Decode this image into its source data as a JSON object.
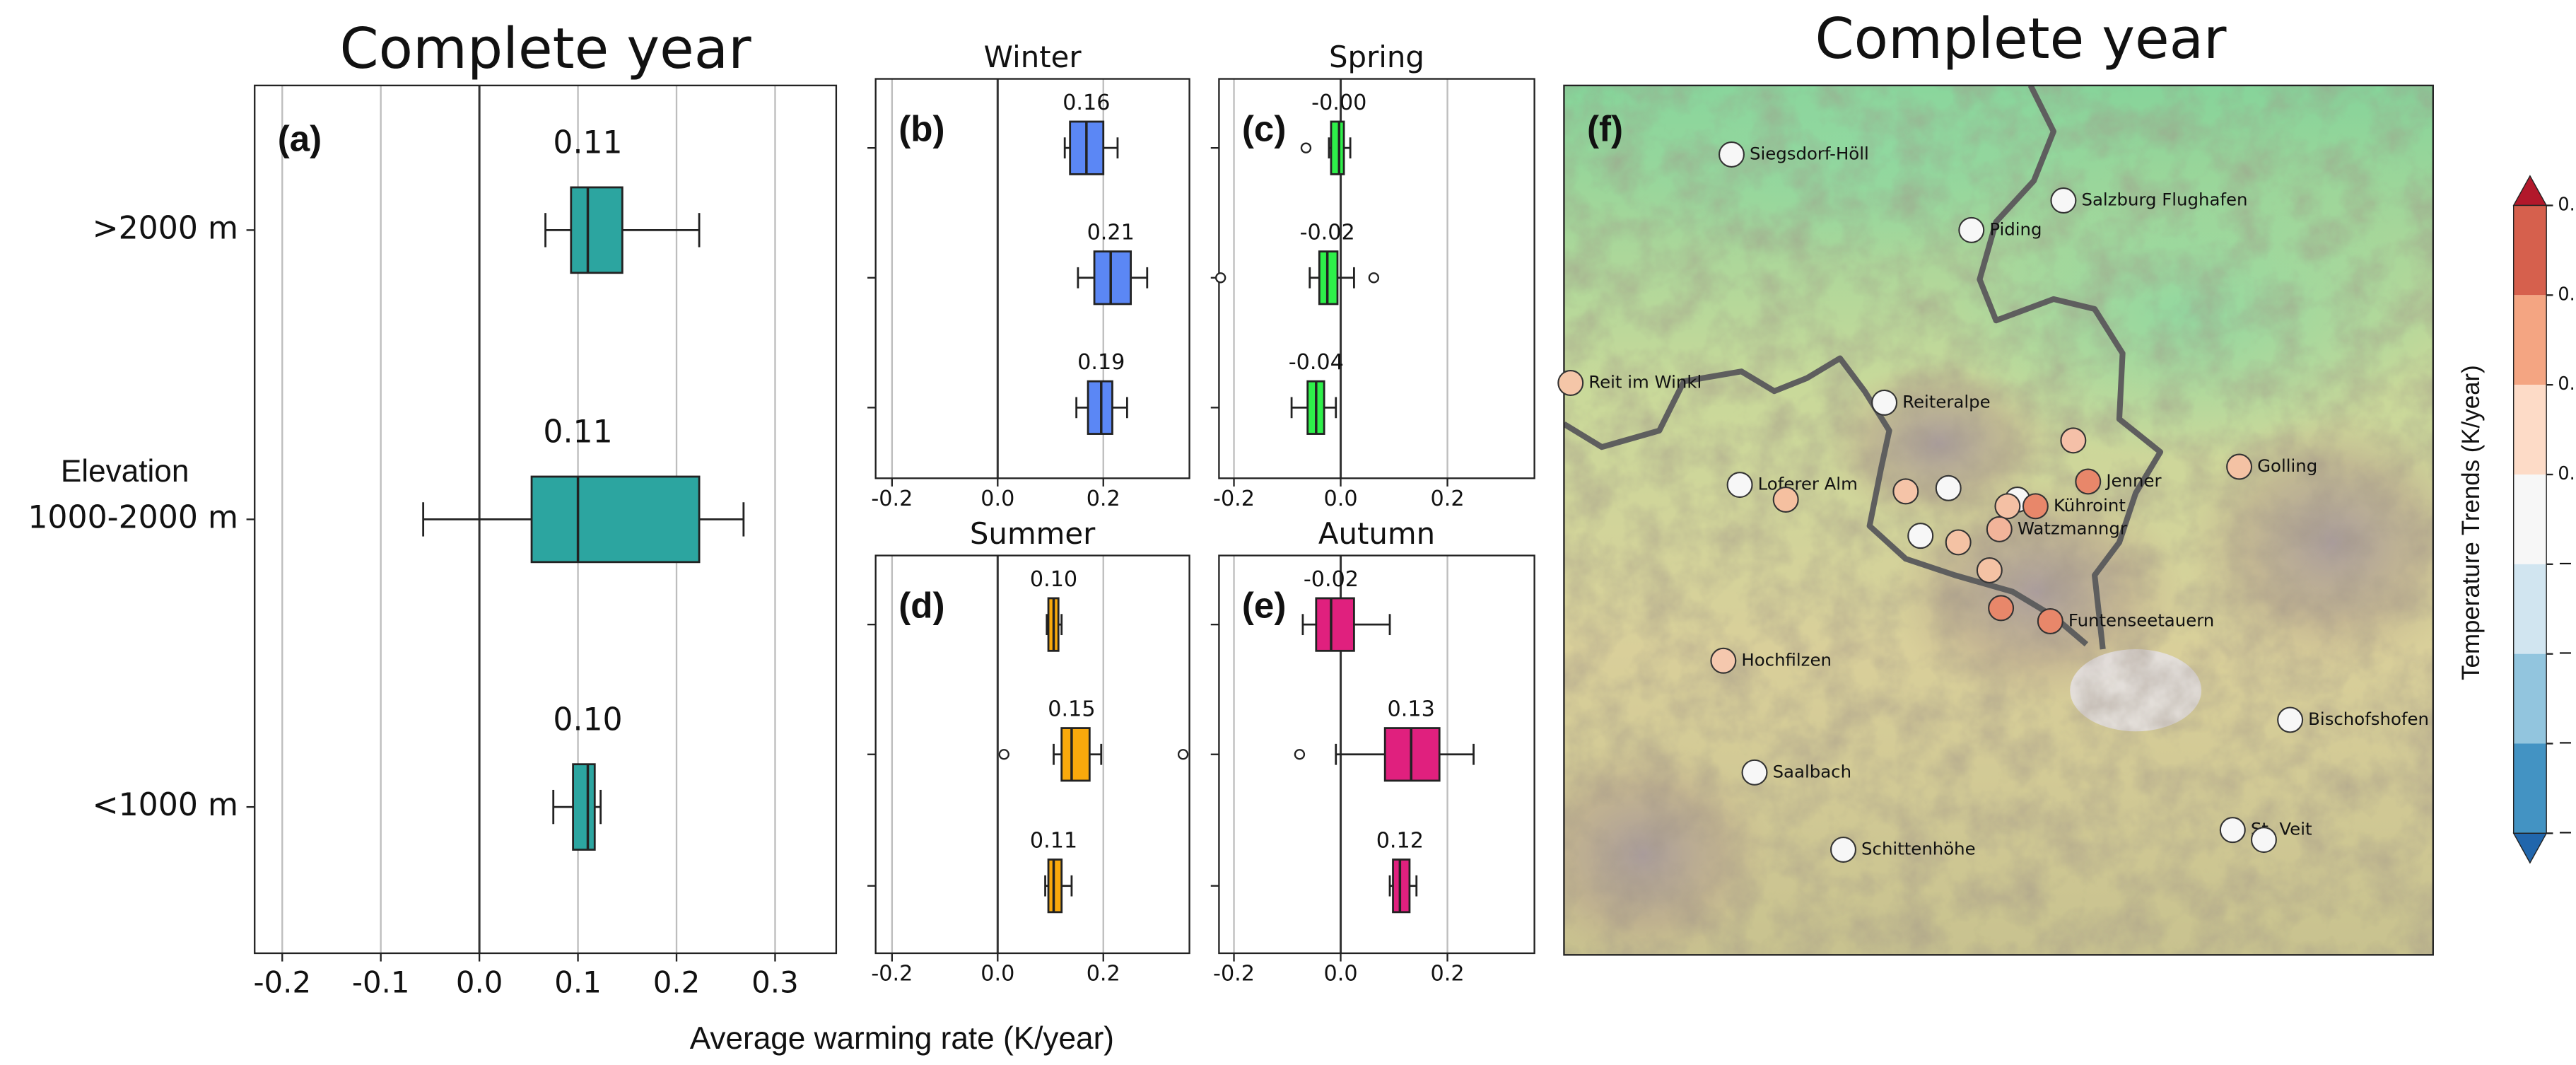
{
  "chart_data": [
    {
      "type": "box",
      "panel": "(a)",
      "title": "Complete year",
      "ylabel": "Elevation",
      "xlabel": "Average warming rate (K/year)",
      "categories": [
        ">2000 m",
        "1000-2000 m",
        "<1000 m"
      ],
      "color": "#2ca5a0",
      "xlim": [
        -0.228,
        0.362
      ],
      "xticks": [
        -0.2,
        -0.1,
        {
          "value": 0,
          "label": "0.0"
        },
        0.1,
        0.2,
        0.3
      ],
      "boxes": [
        {
          "whislo": 0.067,
          "q1": 0.093,
          "med": 0.11,
          "q3": 0.145,
          "whishi": 0.223,
          "fliers": [],
          "label": "0.11"
        },
        {
          "whislo": -0.057,
          "q1": 0.053,
          "med": 0.1,
          "q3": 0.223,
          "whishi": 0.268,
          "fliers": [],
          "label": "0.11"
        },
        {
          "whislo": 0.075,
          "q1": 0.095,
          "med": 0.11,
          "q3": 0.117,
          "whishi": 0.123,
          "fliers": [],
          "label": "0.10"
        }
      ]
    },
    {
      "type": "box",
      "panel": "(b)",
      "title": "Winter",
      "color": "#5b87f5",
      "xlim": [
        -0.231,
        0.363
      ],
      "xticks": [
        -0.2,
        {
          "value": 0,
          "label": "0.0"
        },
        0.2
      ],
      "boxes": [
        {
          "whislo": 0.127,
          "q1": 0.137,
          "med": 0.168,
          "q3": 0.2,
          "whishi": 0.227,
          "fliers": [],
          "label": "0.16"
        },
        {
          "whislo": 0.152,
          "q1": 0.183,
          "med": 0.214,
          "q3": 0.252,
          "whishi": 0.283,
          "fliers": [],
          "label": "0.21"
        },
        {
          "whislo": 0.149,
          "q1": 0.171,
          "med": 0.196,
          "q3": 0.217,
          "whishi": 0.245,
          "fliers": [],
          "label": "0.19"
        }
      ]
    },
    {
      "type": "box",
      "panel": "(c)",
      "title": "Spring",
      "color": "#2ef04a",
      "xlim": [
        -0.228,
        0.363
      ],
      "xticks": [
        -0.2,
        {
          "value": 0,
          "label": "0.0"
        },
        0.2
      ],
      "boxes": [
        {
          "whislo": -0.022,
          "q1": -0.018,
          "med": -0.003,
          "q3": 0.006,
          "whishi": 0.018,
          "fliers": [
            -0.065
          ],
          "label": "-0.00"
        },
        {
          "whislo": -0.058,
          "q1": -0.04,
          "med": -0.025,
          "q3": -0.006,
          "whishi": 0.025,
          "fliers": [
            -0.225,
            0.062
          ],
          "label": "-0.02"
        },
        {
          "whislo": -0.092,
          "q1": -0.062,
          "med": -0.046,
          "q3": -0.031,
          "whishi": -0.009,
          "fliers": [],
          "label": "-0.04"
        }
      ]
    },
    {
      "type": "box",
      "panel": "(d)",
      "title": "Summer",
      "color": "#f9a90c",
      "xlim": [
        -0.231,
        0.363
      ],
      "xticks": [
        -0.2,
        {
          "value": 0,
          "label": "0.0"
        },
        0.2
      ],
      "boxes": [
        {
          "whislo": 0.093,
          "q1": 0.096,
          "med": 0.106,
          "q3": 0.115,
          "whishi": 0.121,
          "fliers": [],
          "label": "0.10"
        },
        {
          "whislo": 0.106,
          "q1": 0.121,
          "med": 0.14,
          "q3": 0.174,
          "whishi": 0.196,
          "fliers": [
            0.012,
            0.351
          ],
          "label": "0.15"
        },
        {
          "whislo": 0.09,
          "q1": 0.096,
          "med": 0.106,
          "q3": 0.121,
          "whishi": 0.14,
          "fliers": [],
          "label": "0.11"
        }
      ]
    },
    {
      "type": "box",
      "panel": "(e)",
      "title": "Autumn",
      "color": "#e0207e",
      "xlim": [
        -0.228,
        0.363
      ],
      "xticks": [
        -0.2,
        {
          "value": 0,
          "label": "0.0"
        },
        0.2
      ],
      "boxes": [
        {
          "whislo": -0.071,
          "q1": -0.046,
          "med": -0.018,
          "q3": 0.025,
          "whishi": 0.092,
          "fliers": [],
          "label": "-0.02"
        },
        {
          "whislo": -0.009,
          "q1": 0.083,
          "med": 0.132,
          "q3": 0.185,
          "whishi": 0.249,
          "fliers": [
            -0.077
          ],
          "label": "0.13"
        },
        {
          "whislo": 0.092,
          "q1": 0.098,
          "med": 0.111,
          "q3": 0.129,
          "whishi": 0.142,
          "fliers": [],
          "label": "0.12"
        }
      ]
    },
    {
      "type": "map",
      "panel": "(f)",
      "title": "Complete year",
      "stations": [
        {
          "name": "Siegsdorf-Höll",
          "color": "#f7f7f7"
        },
        {
          "name": "Salzburg Flughafen",
          "color": "#f7f7f7"
        },
        {
          "name": "Piding",
          "color": "#f7f7f7"
        },
        {
          "name": "Reit im Winkl",
          "color": "#f5c6a8"
        },
        {
          "name": "Reiteralpe",
          "color": "#f7f7f7"
        },
        {
          "name": "Loferer Alm",
          "color": "#f7f7f7"
        },
        {
          "color": "#f5c0a0"
        },
        {
          "name": "Golling",
          "color": "#f4c2a4"
        },
        {
          "name": "Jenner",
          "color": "#e8876a"
        },
        {
          "color": "#f5c0a8"
        },
        {
          "color": "#f5c4a8"
        },
        {
          "color": "#f7f7f7"
        },
        {
          "color": "#f7f7f7"
        },
        {
          "color": "#f4c0a4"
        },
        {
          "name": "Kühroint",
          "color": "#e8876a"
        },
        {
          "name": "Watzmanngr",
          "color": "#f2b49a"
        },
        {
          "color": "#f7f7f7"
        },
        {
          "color": "#f4c2a4"
        },
        {
          "color": "#f4c2a4"
        },
        {
          "color": "#e8876a"
        },
        {
          "name": "Funtenseetauern",
          "color": "#e8876a"
        },
        {
          "name": "Hochfilzen",
          "color": "#f5c8ae"
        },
        {
          "name": "Bischofshofen",
          "color": "#f7f7f7"
        },
        {
          "name": "Saalbach",
          "color": "#f7f7f7"
        },
        {
          "name": "St. Veit",
          "color": "#f7f7f7"
        },
        {
          "color": "#f7f7f7"
        },
        {
          "name": "Schittenhöhe",
          "color": "#f7f7f7"
        }
      ],
      "colorbar": {
        "label": "Temperature Trends (K/year)",
        "colors": [
          "#b2182b",
          "#d6604d",
          "#f4a582",
          "#fddbc7",
          "#f7f7f7",
          "#d1e5f0",
          "#92c5de",
          "#4393c3",
          "#2166ac"
        ],
        "tick_labels": [
          "0.",
          "0.",
          "0.",
          "0.",
          "−",
          "−",
          "−",
          "−"
        ]
      }
    }
  ]
}
